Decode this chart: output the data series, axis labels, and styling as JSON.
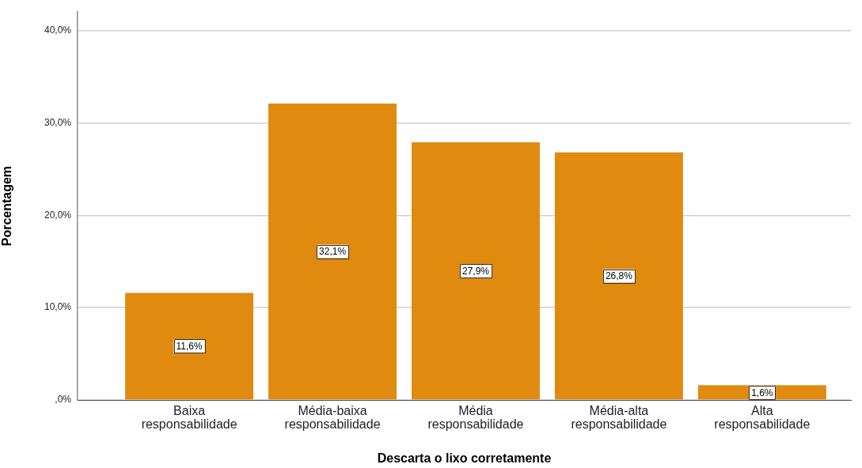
{
  "chart_data": {
    "type": "bar",
    "xlabel": "Descarta o lixo corretamente",
    "ylabel": "Porcentagem",
    "categories": [
      "Baixa responsabilidade",
      "Média-baixa responsabilidade",
      "Média responsabilidade",
      "Média-alta responsabilidade",
      "Alta responsabilidade"
    ],
    "values": [
      11.6,
      32.1,
      27.9,
      26.8,
      1.6
    ],
    "value_labels": [
      "11,6%",
      "32,1%",
      "27,9%",
      "26,8%",
      "1,6%"
    ],
    "color": "#e08a10",
    "ylim": [
      0,
      42
    ],
    "yticks": [
      {
        "value": 0,
        "label": ",0%"
      },
      {
        "value": 10,
        "label": "10,0%"
      },
      {
        "value": 20,
        "label": "20,0%"
      },
      {
        "value": 30,
        "label": "30,0%"
      },
      {
        "value": 40,
        "label": "40,0%"
      }
    ],
    "grid": "y"
  }
}
